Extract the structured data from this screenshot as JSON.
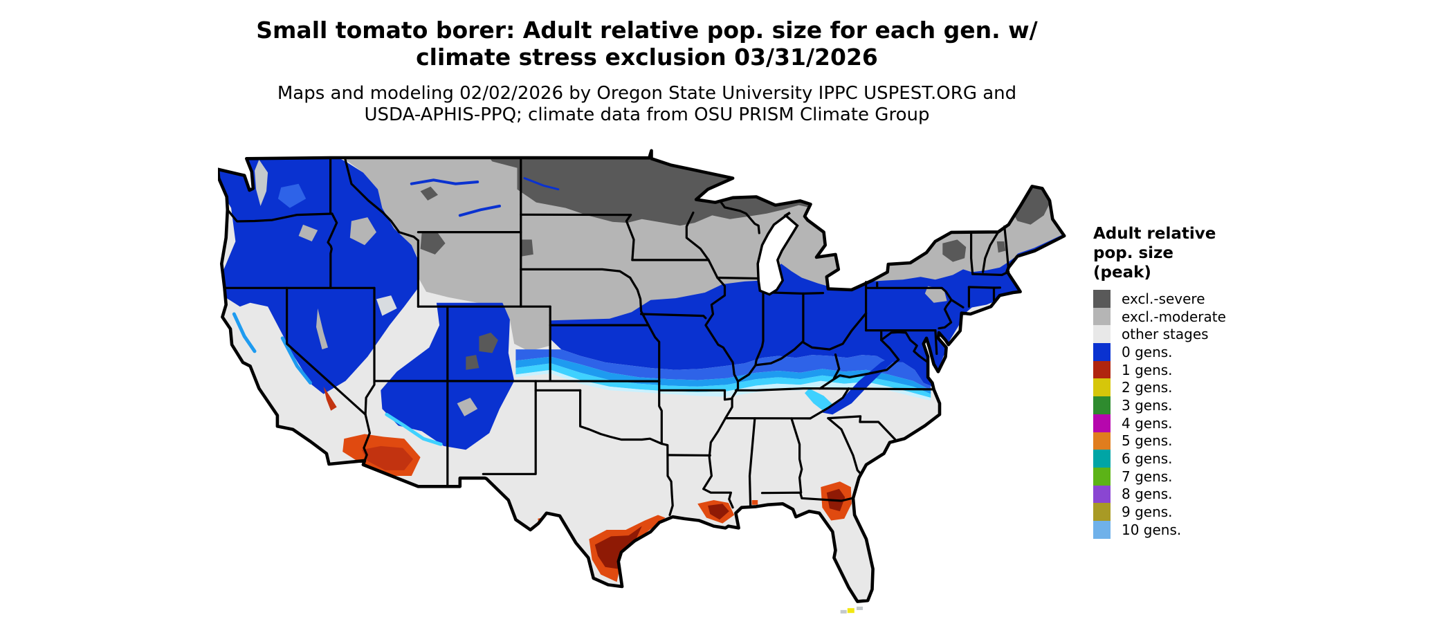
{
  "title": {
    "line1": "Small tomato borer: Adult relative pop. size for each gen. w/",
    "line2": "climate stress exclusion 03/31/2026"
  },
  "subtitle": {
    "line1": "Maps and modeling 02/02/2026 by Oregon State University IPPC USPEST.ORG and",
    "line2": "USDA-APHIS-PPQ; climate data from OSU PRISM Climate Group"
  },
  "legend": {
    "title_lines": [
      "Adult relative",
      "pop. size",
      "(peak)"
    ],
    "items": [
      {
        "key": "severe",
        "label": "excl.-severe",
        "color": "#595959"
      },
      {
        "key": "moderate",
        "label": "excl.-moderate",
        "color": "#b5b5b5"
      },
      {
        "key": "other",
        "label": "other stages",
        "color": "#e8e8e8"
      },
      {
        "key": "g0",
        "label": "0 gens.",
        "color": "#0a32d0"
      },
      {
        "key": "g1",
        "label": "1 gens.",
        "color": "#b0250f"
      },
      {
        "key": "g2",
        "label": "2 gens.",
        "color": "#d6c60a"
      },
      {
        "key": "g3",
        "label": "3 gens.",
        "color": "#2e8b2e"
      },
      {
        "key": "g4",
        "label": "4 gens.",
        "color": "#b607ad"
      },
      {
        "key": "g5",
        "label": "5 gens.",
        "color": "#e07d1e"
      },
      {
        "key": "g6",
        "label": "6 gens.",
        "color": "#00a5a5"
      },
      {
        "key": "g7",
        "label": "7 gens.",
        "color": "#5cb317"
      },
      {
        "key": "g8",
        "label": "8 gens.",
        "color": "#8a46d2"
      },
      {
        "key": "g9",
        "label": "9 gens.",
        "color": "#a89a25"
      },
      {
        "key": "g10",
        "label": "10 gens.",
        "color": "#6fb1ea"
      }
    ]
  },
  "map": {
    "colors": {
      "base": "#e8e8e8",
      "severe": "#595959",
      "moderate": "#b5b5b5",
      "blue": "#0a32d0",
      "midblue": "#2e63e8",
      "lightblue": "#1e9bf0",
      "cyan": "#3fd1ff",
      "pale": "#c9f1ff",
      "orange": "#e04a10",
      "red": "#c23310",
      "darkred": "#8f1a05",
      "yellow": "#f2e713",
      "patchgray": "#c4c9cc",
      "patchlight": "#d8dce0",
      "lake": "#ffffff",
      "border": "#000000"
    }
  },
  "chart_data": {
    "type": "heatmap",
    "subtype": "choropleth-us-map",
    "title": "Small tomato borer: Adult relative pop. size for each gen. w/ climate stress exclusion 03/31/2026",
    "model_note": "Maps and modeling 02/02/2026 by Oregon State University IPPC USPEST.ORG and USDA-APHIS-PPQ; climate data from OSU PRISM Climate Group",
    "legend_title": "Adult relative pop. size (peak)",
    "categories": [
      "excl.-severe",
      "excl.-moderate",
      "other stages",
      "0 gens.",
      "1 gens.",
      "2 gens.",
      "3 gens.",
      "4 gens.",
      "5 gens.",
      "6 gens.",
      "7 gens.",
      "8 gens.",
      "9 gens.",
      "10 gens."
    ],
    "colors": [
      "#595959",
      "#b5b5b5",
      "#e8e8e8",
      "#0a32d0",
      "#b0250f",
      "#d6c60a",
      "#2e8b2e",
      "#b607ad",
      "#e07d1e",
      "#00a5a5",
      "#5cb317",
      "#8a46d2",
      "#a89a25",
      "#6fb1ea"
    ],
    "legend_position": "right",
    "region_assignments": [
      {
        "category": "excl.-severe",
        "areas": "North Dakota, Minnesota, northern Wisconsin, upper Michigan, northeastern Montana, northern Maine, Adirondacks, scattered high Rockies (Yellowstone, Colorado peaks, Black Hills)"
      },
      {
        "category": "excl.-moderate",
        "areas": "Montana, Wyoming, South Dakota, Nebraska, Iowa, Wisconsin, lower Michigan, upstate New York, Vermont/New Hampshire, southern Maine, central Idaho patches"
      },
      {
        "category": "0 gens.",
        "areas": "Washington, Oregon, Idaho, Nevada, Utah, western Colorado, northern Arizona/New Mexico highlands; broad band from Kansas across Missouri, Illinois, Indiana, Ohio, Pennsylvania, New Jersey and southern New England; Appalachian ridge into North Carolina; grades south through lighter blues and cyan to white near the 36.5N line"
      },
      {
        "category": "1 gens.",
        "areas": "red-orange coastal blobs: south Texas coast, Louisiana delta, north Florida / south Georgia, southern Arizona and southeastern California, Death Valley"
      },
      {
        "category": "2 gens.",
        "areas": "trace yellow spot near the Florida Keys"
      },
      {
        "category": "other stages",
        "areas": "California Central Valley and coast, southern deserts, Texas, Oklahoma and the remainder of the Southeast"
      }
    ]
  }
}
